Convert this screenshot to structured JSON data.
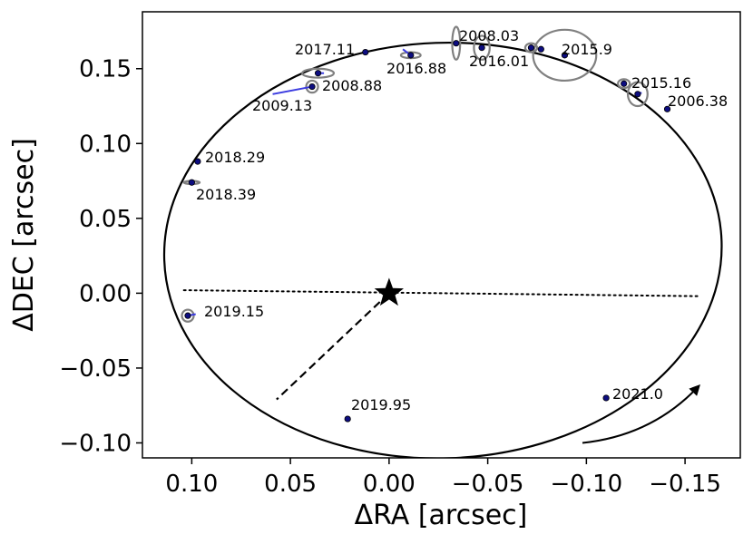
{
  "chart_data": {
    "type": "scatter",
    "title": "",
    "xlabel": "ΔRA [arcsec]",
    "ylabel": "ΔDEC [arcsec]",
    "xlim": [
      0.125,
      -0.178
    ],
    "ylim": [
      -0.11,
      0.188
    ],
    "x_inverted": true,
    "xticks": [
      0.1,
      0.05,
      0.0,
      -0.05,
      -0.1,
      -0.15
    ],
    "xtick_labels": [
      "0.10",
      "0.05",
      "0.00",
      "−0.05",
      "−0.10",
      "−0.15"
    ],
    "yticks": [
      -0.1,
      -0.05,
      0.0,
      0.05,
      0.1,
      0.15
    ],
    "ytick_labels": [
      "−0.10",
      "−0.05",
      "0.00",
      "0.05",
      "0.10",
      "0.15"
    ],
    "grid": false,
    "orbit": {
      "center": [
        -0.0273,
        0.0285
      ],
      "semi_axes": [
        0.1413,
        0.1388
      ],
      "tilt_deg": -2
    },
    "primary": {
      "ra": 0.0,
      "dec": 0.0,
      "marker": "star"
    },
    "line_of_nodes": {
      "from": [
        0.104,
        0.002
      ],
      "to": [
        -0.158,
        -0.002
      ],
      "style": "dotted"
    },
    "periastron_line": {
      "from": [
        0.0,
        0.0
      ],
      "to": [
        0.057,
        -0.071
      ],
      "style": "dashed"
    },
    "direction_arrow": {
      "from": [
        -0.098,
        -0.1
      ],
      "to": [
        -0.157,
        -0.062
      ]
    },
    "observations": [
      {
        "epoch": "2006.38",
        "ra": -0.141,
        "dec": 0.123,
        "model_ra": -0.14,
        "model_dec": 0.124,
        "label": "2006.38"
      },
      {
        "epoch": "2008.03",
        "ra": -0.034,
        "dec": 0.167,
        "model_ra": -0.034,
        "model_dec": 0.167,
        "err_ra": 0.002,
        "err_dec": 0.011,
        "label": "2008.03"
      },
      {
        "epoch": "2008.88",
        "ra": 0.036,
        "dec": 0.147,
        "model_ra": 0.033,
        "model_dec": 0.147,
        "err_ra": 0.008,
        "err_dec": 0.003,
        "label": "2008.88"
      },
      {
        "epoch": "2009.13",
        "ra": 0.039,
        "dec": 0.138,
        "model_ra": 0.059,
        "model_dec": 0.133,
        "err_ra": 0.003,
        "err_dec": 0.004,
        "label": "2009.13"
      },
      {
        "epoch": "2015.16",
        "ra": -0.126,
        "dec": 0.133,
        "model_ra": -0.128,
        "model_dec": 0.134,
        "err_ra": 0.005,
        "err_dec": 0.008,
        "label": "2015.16"
      },
      {
        "epoch": "2015.16b",
        "ra": -0.119,
        "dec": 0.14,
        "model_ra": -0.12,
        "model_dec": 0.14,
        "err_ra": 0.003,
        "err_dec": 0.003,
        "label": ""
      },
      {
        "epoch": "2015.9",
        "ra": -0.089,
        "dec": 0.159,
        "model_ra": -0.088,
        "model_dec": 0.159,
        "err_ra": 0.016,
        "err_dec": 0.017,
        "label": "2015.9"
      },
      {
        "epoch": "2016.01",
        "ra": -0.047,
        "dec": 0.164,
        "model_ra": -0.047,
        "model_dec": 0.165,
        "err_ra": 0.004,
        "err_dec": 0.008,
        "label": "2016.01"
      },
      {
        "epoch": "2016.01b",
        "ra": -0.072,
        "dec": 0.164,
        "model_ra": -0.072,
        "model_dec": 0.164,
        "err_ra": 0.003,
        "err_dec": 0.003,
        "label": ""
      },
      {
        "epoch": "2016.01c",
        "ra": -0.077,
        "dec": 0.163,
        "model_ra": -0.076,
        "model_dec": 0.163,
        "err_ra": 0.001,
        "err_dec": 0.001,
        "label": ""
      },
      {
        "epoch": "2016.88",
        "ra": -0.011,
        "dec": 0.159,
        "model_ra": -0.007,
        "model_dec": 0.163,
        "err_ra": 0.005,
        "err_dec": 0.002,
        "label": "2016.88"
      },
      {
        "epoch": "2017.11",
        "ra": 0.012,
        "dec": 0.161,
        "model_ra": 0.012,
        "model_dec": 0.161,
        "label": "2017.11"
      },
      {
        "epoch": "2018.29",
        "ra": 0.097,
        "dec": 0.088,
        "model_ra": 0.097,
        "model_dec": 0.088,
        "label": "2018.29"
      },
      {
        "epoch": "2018.39",
        "ra": 0.1,
        "dec": 0.074,
        "model_ra": 0.1,
        "model_dec": 0.074,
        "err_ra": 0.004,
        "err_dec": 0.001,
        "label": "2018.39"
      },
      {
        "epoch": "2019.15",
        "ra": 0.102,
        "dec": -0.015,
        "model_ra": 0.098,
        "model_dec": -0.014,
        "err_ra": 0.003,
        "err_dec": 0.004,
        "label": "2019.15"
      },
      {
        "epoch": "2019.95",
        "ra": 0.021,
        "dec": -0.084,
        "model_ra": 0.021,
        "model_dec": -0.084,
        "label": "2019.95"
      },
      {
        "epoch": "2021.0",
        "ra": -0.11,
        "dec": -0.07,
        "model_ra": -0.11,
        "model_dec": -0.07,
        "label": "2021.0"
      }
    ],
    "colors": {
      "orbit": "#000000",
      "points": "#0d0d80",
      "point_edge": "#000000",
      "residual": "#3a3ae0",
      "error_ellipse": "#808080"
    }
  }
}
